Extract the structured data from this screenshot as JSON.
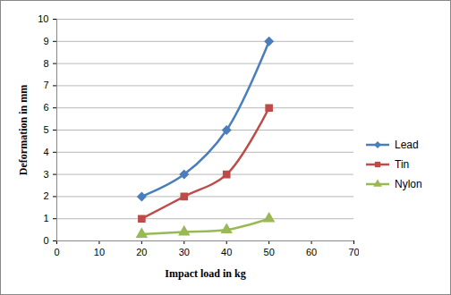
{
  "chart_data": {
    "type": "line",
    "x_label": "Impact load in kg",
    "y_label": "Deformation in mm",
    "x": [
      20,
      30,
      40,
      50
    ],
    "series": [
      {
        "name": "Lead",
        "color": "#4a7ebb",
        "marker": "diamond",
        "line_style": "solid",
        "values": [
          2,
          3,
          5,
          9
        ]
      },
      {
        "name": "Tin",
        "color": "#be4b48",
        "marker": "square",
        "line_style": "solid",
        "values": [
          1,
          2,
          3,
          6
        ]
      },
      {
        "name": "Nylon",
        "color": "#98b954",
        "marker": "triangle",
        "line_style": "solid",
        "values": [
          0.3,
          0.4,
          0.5,
          1
        ]
      }
    ],
    "xlim": [
      0,
      70
    ],
    "xticks": [
      0,
      10,
      20,
      30,
      40,
      50,
      60,
      70
    ],
    "ylim": [
      0,
      10
    ],
    "yticks": [
      0,
      1,
      2,
      3,
      4,
      5,
      6,
      7,
      8,
      9,
      10
    ],
    "grid": true,
    "legend": "right"
  }
}
